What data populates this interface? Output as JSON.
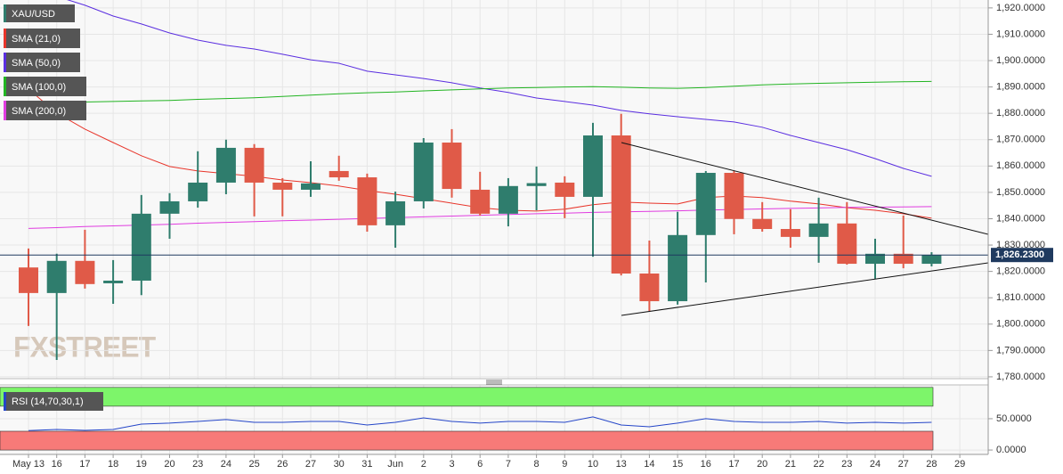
{
  "chart_data": [
    {
      "type": "candlestick",
      "title": "XAU/USD",
      "categories": [
        "May 13",
        "16",
        "17",
        "18",
        "19",
        "20",
        "23",
        "24",
        "25",
        "26",
        "27",
        "30",
        "31",
        "Jun",
        "2",
        "3",
        "6",
        "7",
        "8",
        "9",
        "10",
        "13",
        "14",
        "15",
        "16",
        "17",
        "20",
        "21",
        "22",
        "23",
        "24",
        "27",
        "28",
        "29"
      ],
      "open": [
        1821.5,
        1811.8,
        1824,
        1815.5,
        1816.5,
        1841.9,
        1846.6,
        1853.7,
        1866.9,
        1853.7,
        1851,
        1858.1,
        1855.7,
        1837.5,
        1846.6,
        1868.9,
        1851,
        1841.9,
        1852.4,
        1853.7,
        1848.3,
        1871.6,
        1819.2,
        1808.7,
        1833.8,
        1857.4,
        1839.9,
        1836.1,
        1833.1,
        1838.2,
        1822.9,
        1826.7,
        1822.9,
        null
      ],
      "high": [
        1828.7,
        1826.7,
        1835.8,
        1824.3,
        1849,
        1849.7,
        1865.6,
        1870,
        1868.3,
        1855.4,
        1861.8,
        1863.9,
        1857.1,
        1850.3,
        1870.6,
        1874,
        1857.8,
        1855.4,
        1859.8,
        1856.1,
        1876.4,
        1879.8,
        1831.7,
        1842.6,
        1858.1,
        1858.1,
        1846.3,
        1843.6,
        1848,
        1846.3,
        1832.4,
        1841.2,
        1827.3,
        null
      ],
      "low": [
        1799.3,
        1786.4,
        1813.5,
        1807.7,
        1811,
        1832.4,
        1844.2,
        1849.3,
        1840.9,
        1840.9,
        1848.3,
        1854.4,
        1835.1,
        1829,
        1843.9,
        1848,
        1841.2,
        1837.1,
        1843.2,
        1840.2,
        1825.6,
        1818.5,
        1805,
        1807.4,
        1815.8,
        1834.1,
        1835.1,
        1829,
        1823.3,
        1822.6,
        1817.2,
        1821.2,
        1821.9,
        null
      ],
      "close": [
        1811.8,
        1824,
        1815.2,
        1816.5,
        1841.9,
        1846.6,
        1853.7,
        1866.9,
        1853.7,
        1851,
        1853.4,
        1855.7,
        1837.5,
        1846.6,
        1868.9,
        1851.3,
        1841.9,
        1852.4,
        1853.5,
        1848.3,
        1871.6,
        1819.2,
        1808.7,
        1833.8,
        1857.4,
        1839.9,
        1836.1,
        1833.1,
        1838.2,
        1822.9,
        1826.7,
        1822.9,
        1826.23,
        null
      ],
      "up_color": "#2f7d6d",
      "down_color": "#e05a48",
      "series": [
        {
          "name": "SMA (21,0)",
          "color": "#e8352a",
          "values": [
            1889.2,
            1880.1,
            1874.0,
            1868.9,
            1863.9,
            1859.8,
            1858.1,
            1857.1,
            1856.1,
            1854.7,
            1853.7,
            1852.4,
            1850.7,
            1849.3,
            1847.6,
            1845.9,
            1844.2,
            1843.2,
            1842.9,
            1843.6,
            1845.3,
            1846.3,
            1845.9,
            1845.6,
            1848.0,
            1848.6,
            1848.0,
            1846.7,
            1845.6,
            1844.2,
            1843.2,
            1841.9,
            1840.2,
            null
          ]
        },
        {
          "name": "SMA (50,0)",
          "color": "#5a2ee0",
          "values": [
            1928.1,
            1924.4,
            1921.0,
            1916.9,
            1913.9,
            1910.5,
            1907.8,
            1905.8,
            1904.4,
            1902.4,
            1900.3,
            1899.0,
            1896.0,
            1894.6,
            1893.2,
            1891.6,
            1889.6,
            1887.9,
            1885.8,
            1884.5,
            1883.1,
            1881.1,
            1879.8,
            1878.7,
            1877.7,
            1876.7,
            1874.7,
            1871.6,
            1868.9,
            1866.2,
            1862.8,
            1859.1,
            1856.1,
            null
          ]
        },
        {
          "name": "SMA (100,0)",
          "color": "#22b422",
          "values": [
            1884.1,
            1884.2,
            1884.3,
            1884.5,
            1884.7,
            1884.9,
            1885.3,
            1885.6,
            1885.9,
            1886.4,
            1886.9,
            1887.4,
            1887.8,
            1888.1,
            1888.5,
            1888.9,
            1889.3,
            1889.6,
            1889.8,
            1890.0,
            1890.1,
            1889.9,
            1889.6,
            1889.5,
            1889.8,
            1890.3,
            1890.8,
            1891.1,
            1891.4,
            1891.6,
            1891.8,
            1892.0,
            1892.1,
            null
          ]
        },
        {
          "name": "SMA (200,0)",
          "color": "#e03ce0",
          "values": [
            1836.3,
            1836.6,
            1837.0,
            1837.3,
            1837.6,
            1837.9,
            1838.3,
            1838.6,
            1838.9,
            1839.2,
            1839.5,
            1839.8,
            1840.1,
            1840.4,
            1840.7,
            1841.0,
            1841.3,
            1841.6,
            1841.9,
            1842.1,
            1842.4,
            1842.6,
            1842.8,
            1843.0,
            1843.3,
            1843.5,
            1843.7,
            1843.9,
            1844.1,
            1844.3,
            1844.4,
            1844.5,
            1844.6,
            null
          ]
        }
      ],
      "last_price": {
        "value": 1826.23,
        "label": "1,826.2300"
      },
      "ylim": [
        1779.3,
        1923.0
      ],
      "yticks": [
        {
          "value": 1780,
          "label": "1,780.0000"
        },
        {
          "value": 1790,
          "label": "1,790.0000"
        },
        {
          "value": 1800,
          "label": "1,800.0000"
        },
        {
          "value": 1810,
          "label": "1,810.0000"
        },
        {
          "value": 1820,
          "label": "1,820.0000"
        },
        {
          "value": 1830,
          "label": "1,830.0000"
        },
        {
          "value": 1840,
          "label": "1,840.0000"
        },
        {
          "value": 1850,
          "label": "1,850.0000"
        },
        {
          "value": 1860,
          "label": "1,860.0000"
        },
        {
          "value": 1870,
          "label": "1,870.0000"
        },
        {
          "value": 1880,
          "label": "1,880.0000"
        },
        {
          "value": 1890,
          "label": "1,890.0000"
        },
        {
          "value": 1900,
          "label": "1,900.0000"
        },
        {
          "value": 1910,
          "label": "1,910.0000"
        },
        {
          "value": 1920,
          "label": "1,920.0000"
        }
      ],
      "grid": true
    },
    {
      "type": "line",
      "title": "RSI (14,70,30,1)",
      "color": "#2445c8",
      "values": [
        31,
        32.9,
        31.4,
        32.9,
        41.4,
        42.9,
        45.7,
        48.6,
        44.3,
        44.3,
        45.7,
        45.7,
        40,
        44.3,
        51.4,
        45.7,
        42.9,
        45.7,
        45.7,
        44.3,
        52.9,
        40,
        37.1,
        42.9,
        50,
        45.7,
        44.3,
        44.3,
        45.7,
        42.9,
        44.3,
        42.9,
        44.3,
        null
      ],
      "bands": [
        {
          "from": 70,
          "to": 100,
          "color": "#7df56a"
        },
        {
          "from": 0,
          "to": 30,
          "color": "#f77a78"
        }
      ],
      "ylim": [
        -7,
        104
      ],
      "yticks": [
        {
          "value": 0,
          "label": "0.0000"
        },
        {
          "value": 50,
          "label": "50.0000"
        }
      ],
      "grid": true
    }
  ],
  "watermark": "FXSTREET"
}
